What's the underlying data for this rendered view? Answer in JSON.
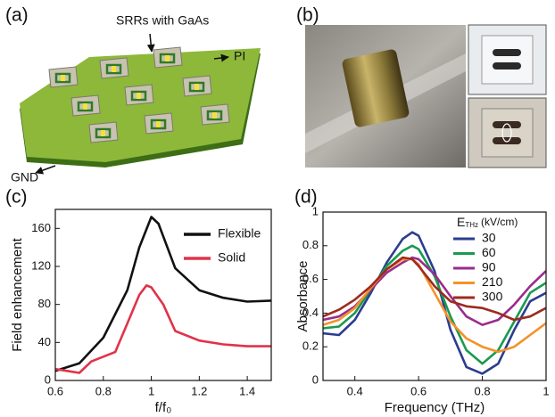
{
  "panels": {
    "a": {
      "label": "(a)",
      "srr_label": "SRRs with GaAs",
      "pi_label": "PI",
      "gnd_label": "GND"
    },
    "b": {
      "label": "(b)"
    },
    "c": {
      "label": "(c)"
    },
    "d": {
      "label": "(d)"
    }
  },
  "chart_data": [
    {
      "type": "line",
      "xlabel": "f/f₀",
      "ylabel": "Field enhancement",
      "xlim": [
        0.6,
        1.5
      ],
      "xticks": [
        0.6,
        0.8,
        1,
        1.2,
        1.4
      ],
      "ylim": [
        0,
        180
      ],
      "yticks": [
        0,
        40,
        80,
        120,
        160
      ],
      "grid": false,
      "legend": "upper right",
      "series": [
        {
          "name": "Flexible",
          "color": "#111111",
          "x": [
            0.6,
            0.7,
            0.8,
            0.9,
            0.95,
            1.0,
            1.03,
            1.1,
            1.2,
            1.3,
            1.4,
            1.5
          ],
          "values": [
            10,
            18,
            45,
            95,
            140,
            172,
            165,
            118,
            95,
            87,
            83,
            84
          ]
        },
        {
          "name": "Solid",
          "color": "#e0334a",
          "x": [
            0.6,
            0.65,
            0.7,
            0.75,
            0.8,
            0.85,
            0.9,
            0.95,
            0.98,
            1.0,
            1.05,
            1.1,
            1.2,
            1.3,
            1.4,
            1.5
          ],
          "values": [
            12,
            10,
            8,
            20,
            25,
            30,
            60,
            90,
            100,
            98,
            80,
            52,
            42,
            38,
            36,
            36
          ]
        }
      ]
    },
    {
      "type": "line",
      "xlabel": "Frequency (THz)",
      "ylabel": "Absorbance",
      "legend_title": "E",
      "legend_title_sub": "THz",
      "legend_title_unit": "(kV/cm)",
      "xlim": [
        0.3,
        1
      ],
      "xticks": [
        0.4,
        0.6,
        0.8,
        1
      ],
      "ylim": [
        0,
        1
      ],
      "yticks": [
        0,
        0.2,
        0.4,
        0.6,
        0.8,
        1
      ],
      "grid": false,
      "legend": "upper right",
      "x": [
        0.3,
        0.35,
        0.4,
        0.45,
        0.5,
        0.55,
        0.58,
        0.6,
        0.65,
        0.7,
        0.75,
        0.8,
        0.85,
        0.9,
        0.95,
        1.0
      ],
      "series": [
        {
          "name": "30",
          "color": "#2b3d8f",
          "values": [
            0.28,
            0.27,
            0.36,
            0.52,
            0.7,
            0.84,
            0.88,
            0.86,
            0.65,
            0.3,
            0.08,
            0.04,
            0.1,
            0.3,
            0.47,
            0.52
          ]
        },
        {
          "name": "60",
          "color": "#1b9a4e",
          "values": [
            0.31,
            0.32,
            0.4,
            0.54,
            0.68,
            0.77,
            0.8,
            0.78,
            0.62,
            0.38,
            0.18,
            0.1,
            0.18,
            0.35,
            0.52,
            0.58
          ]
        },
        {
          "name": "90",
          "color": "#9a2c8c",
          "values": [
            0.36,
            0.38,
            0.44,
            0.54,
            0.64,
            0.7,
            0.73,
            0.72,
            0.63,
            0.5,
            0.38,
            0.33,
            0.36,
            0.45,
            0.56,
            0.65
          ]
        },
        {
          "name": "210",
          "color": "#f4922a",
          "values": [
            0.33,
            0.36,
            0.43,
            0.55,
            0.66,
            0.72,
            0.72,
            0.69,
            0.52,
            0.35,
            0.25,
            0.2,
            0.17,
            0.2,
            0.27,
            0.34
          ]
        },
        {
          "name": "300",
          "color": "#9c2b1f",
          "values": [
            0.38,
            0.42,
            0.48,
            0.56,
            0.66,
            0.73,
            0.72,
            0.68,
            0.56,
            0.47,
            0.44,
            0.43,
            0.4,
            0.36,
            0.38,
            0.43
          ]
        }
      ]
    }
  ]
}
